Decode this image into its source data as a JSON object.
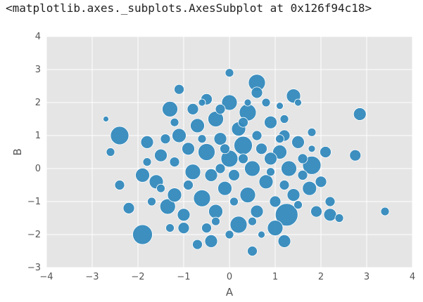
{
  "output_repr": "<matplotlib.axes._subplots.AxesSubplot at 0x126f94c18>",
  "chart_data": {
    "type": "scatter",
    "title": "",
    "xlabel": "A",
    "ylabel": "B",
    "xlim": [
      -4,
      4
    ],
    "ylim": [
      -3,
      4
    ],
    "xticks": [
      "−4",
      "−3",
      "−2",
      "−1",
      "0",
      "1",
      "2",
      "3",
      "4"
    ],
    "yticks": [
      "−3",
      "−2",
      "−1",
      "0",
      "1",
      "2",
      "3",
      "4"
    ],
    "grid": true,
    "background": "#e5e5e5",
    "marker_color": "#348abd",
    "points": [
      {
        "x": 0.6,
        "y": 2.6,
        "s": 12
      },
      {
        "x": 0.6,
        "y": 2.3,
        "s": 8
      },
      {
        "x": 1.4,
        "y": 2.2,
        "s": 10
      },
      {
        "x": -0.5,
        "y": 2.1,
        "s": 8
      },
      {
        "x": 0.0,
        "y": 2.9,
        "s": 6
      },
      {
        "x": -1.1,
        "y": 2.4,
        "s": 7
      },
      {
        "x": -1.3,
        "y": 1.8,
        "s": 11
      },
      {
        "x": 0.0,
        "y": 2.0,
        "s": 11
      },
      {
        "x": 0.4,
        "y": 1.7,
        "s": 12
      },
      {
        "x": 2.85,
        "y": 1.65,
        "s": 9
      },
      {
        "x": -2.4,
        "y": 1.0,
        "s": 13
      },
      {
        "x": -1.8,
        "y": 0.8,
        "s": 9
      },
      {
        "x": -2.6,
        "y": 0.5,
        "s": 6
      },
      {
        "x": -2.7,
        "y": 1.5,
        "s": 4
      },
      {
        "x": -1.9,
        "y": -0.2,
        "s": 10
      },
      {
        "x": -2.4,
        "y": -0.5,
        "s": 7
      },
      {
        "x": -2.2,
        "y": -1.2,
        "s": 8
      },
      {
        "x": -1.9,
        "y": -2.0,
        "s": 14
      },
      {
        "x": -1.35,
        "y": -1.15,
        "s": 11
      },
      {
        "x": -1.0,
        "y": -1.8,
        "s": 8
      },
      {
        "x": -0.7,
        "y": -2.3,
        "s": 7
      },
      {
        "x": -0.4,
        "y": -2.2,
        "s": 9
      },
      {
        "x": 0.2,
        "y": -1.7,
        "s": 12
      },
      {
        "x": 0.5,
        "y": -2.5,
        "s": 7
      },
      {
        "x": 1.2,
        "y": -2.2,
        "s": 9
      },
      {
        "x": 1.25,
        "y": -1.4,
        "s": 16
      },
      {
        "x": 1.0,
        "y": -1.8,
        "s": 11
      },
      {
        "x": 1.9,
        "y": -1.3,
        "s": 8
      },
      {
        "x": 2.2,
        "y": -1.4,
        "s": 9
      },
      {
        "x": 2.4,
        "y": -1.5,
        "s": 6
      },
      {
        "x": 3.4,
        "y": -1.3,
        "s": 6
      },
      {
        "x": 2.75,
        "y": 0.4,
        "s": 8
      },
      {
        "x": 2.1,
        "y": 0.5,
        "s": 8
      },
      {
        "x": 1.8,
        "y": 0.1,
        "s": 13
      },
      {
        "x": 1.75,
        "y": -0.6,
        "s": 10
      },
      {
        "x": 2.0,
        "y": -0.4,
        "s": 8
      },
      {
        "x": 2.2,
        "y": -1.0,
        "s": 7
      },
      {
        "x": 1.5,
        "y": 0.8,
        "s": 9
      },
      {
        "x": 1.8,
        "y": 1.1,
        "s": 6
      },
      {
        "x": 1.2,
        "y": 1.0,
        "s": 8
      },
      {
        "x": 1.1,
        "y": 0.5,
        "s": 10
      },
      {
        "x": 0.9,
        "y": 1.4,
        "s": 9
      },
      {
        "x": 1.2,
        "y": 1.5,
        "s": 6
      },
      {
        "x": 1.5,
        "y": 2.0,
        "s": 5
      },
      {
        "x": 0.3,
        "y": 0.7,
        "s": 13
      },
      {
        "x": -0.3,
        "y": 1.5,
        "s": 11
      },
      {
        "x": -0.7,
        "y": 1.3,
        "s": 10
      },
      {
        "x": -1.1,
        "y": 1.0,
        "s": 10
      },
      {
        "x": -1.5,
        "y": 0.4,
        "s": 9
      },
      {
        "x": -1.6,
        "y": -0.4,
        "s": 10
      },
      {
        "x": -1.2,
        "y": -0.8,
        "s": 10
      },
      {
        "x": -0.8,
        "y": -0.1,
        "s": 11
      },
      {
        "x": -0.5,
        "y": 0.5,
        "s": 12
      },
      {
        "x": 0.0,
        "y": 0.3,
        "s": 12
      },
      {
        "x": 0.5,
        "y": 0.0,
        "s": 11
      },
      {
        "x": 0.8,
        "y": -0.4,
        "s": 10
      },
      {
        "x": 0.4,
        "y": -0.8,
        "s": 11
      },
      {
        "x": -0.1,
        "y": -0.6,
        "s": 10
      },
      {
        "x": -0.6,
        "y": -0.9,
        "s": 12
      },
      {
        "x": -1.0,
        "y": -1.4,
        "s": 9
      },
      {
        "x": -0.3,
        "y": -1.3,
        "s": 10
      },
      {
        "x": 0.6,
        "y": -1.3,
        "s": 9
      },
      {
        "x": 1.4,
        "y": -0.8,
        "s": 9
      },
      {
        "x": 1.3,
        "y": 0.0,
        "s": 11
      },
      {
        "x": 0.9,
        "y": 0.3,
        "s": 9
      },
      {
        "x": 0.2,
        "y": 1.2,
        "s": 10
      },
      {
        "x": -0.2,
        "y": 0.9,
        "s": 9
      },
      {
        "x": -0.9,
        "y": 0.6,
        "s": 9
      },
      {
        "x": -0.4,
        "y": -0.2,
        "s": 9
      },
      {
        "x": 0.1,
        "y": -0.2,
        "s": 8
      },
      {
        "x": 0.7,
        "y": 0.6,
        "s": 8
      },
      {
        "x": 1.0,
        "y": -1.0,
        "s": 8
      },
      {
        "x": -1.4,
        "y": 0.9,
        "s": 7
      },
      {
        "x": -0.8,
        "y": 1.8,
        "s": 8
      },
      {
        "x": 0.8,
        "y": 2.0,
        "s": 6
      },
      {
        "x": 1.1,
        "y": 1.9,
        "s": 5
      },
      {
        "x": -0.2,
        "y": 1.8,
        "s": 7
      },
      {
        "x": 0.3,
        "y": 1.4,
        "s": 7
      },
      {
        "x": 0.6,
        "y": 1.0,
        "s": 7
      },
      {
        "x": 1.6,
        "y": 0.3,
        "s": 7
      },
      {
        "x": 1.6,
        "y": -0.2,
        "s": 7
      },
      {
        "x": 1.5,
        "y": -1.1,
        "s": 6
      },
      {
        "x": 0.7,
        "y": -2.0,
        "s": 5
      },
      {
        "x": 0.0,
        "y": -2.0,
        "s": 6
      },
      {
        "x": -0.5,
        "y": -1.8,
        "s": 7
      },
      {
        "x": -1.3,
        "y": -1.8,
        "s": 6
      },
      {
        "x": -1.7,
        "y": -1.0,
        "s": 6
      },
      {
        "x": -1.8,
        "y": 0.2,
        "s": 6
      },
      {
        "x": -1.2,
        "y": 0.2,
        "s": 7
      },
      {
        "x": -0.6,
        "y": 0.9,
        "s": 6
      },
      {
        "x": -0.1,
        "y": 0.6,
        "s": 7
      },
      {
        "x": 0.3,
        "y": 0.3,
        "s": 7
      },
      {
        "x": 0.1,
        "y": -1.0,
        "s": 6
      },
      {
        "x": -0.9,
        "y": -0.5,
        "s": 7
      },
      {
        "x": 0.9,
        "y": -0.1,
        "s": 6
      },
      {
        "x": 1.1,
        "y": 0.9,
        "s": 6
      },
      {
        "x": 0.4,
        "y": 2.0,
        "s": 5
      },
      {
        "x": -0.6,
        "y": 2.0,
        "s": 5
      },
      {
        "x": -1.2,
        "y": 1.4,
        "s": 6
      },
      {
        "x": 1.8,
        "y": 0.6,
        "s": 5
      },
      {
        "x": 1.2,
        "y": -0.5,
        "s": 7
      },
      {
        "x": -0.3,
        "y": -1.6,
        "s": 6
      },
      {
        "x": 0.5,
        "y": -1.6,
        "s": 6
      },
      {
        "x": -1.5,
        "y": -0.6,
        "s": 6
      },
      {
        "x": -0.2,
        "y": 0.0,
        "s": 7
      }
    ]
  }
}
